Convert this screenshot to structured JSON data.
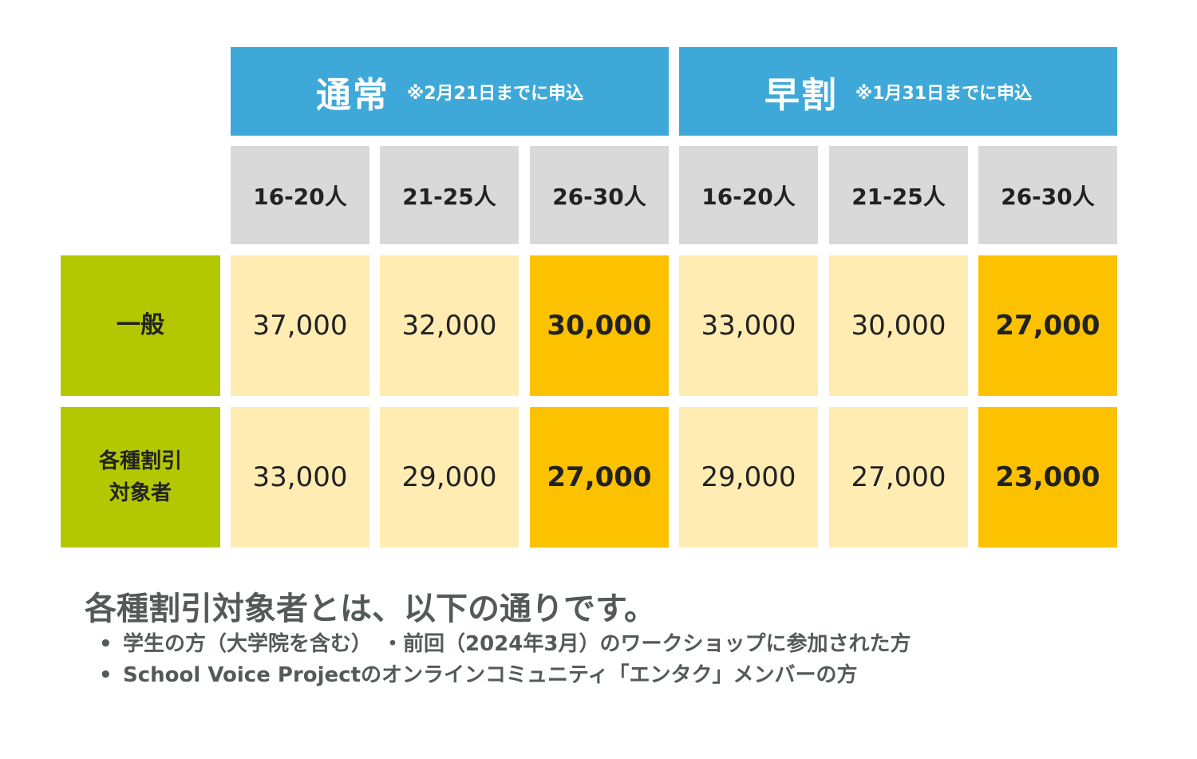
{
  "headers": [
    {
      "title": "通常",
      "note": "※2月21日までに申込"
    },
    {
      "title": "早割",
      "note": "※1月31日までに申込"
    }
  ],
  "group_sizes": [
    "16-20人",
    "21-25人",
    "26-30人",
    "16-20人",
    "21-25人",
    "26-30人"
  ],
  "rows": [
    {
      "label_lines": [
        "一般"
      ],
      "values": [
        "37,000",
        "32,000",
        "30,000",
        "33,000",
        "30,000",
        "27,000"
      ]
    },
    {
      "label_lines": [
        "各種割引",
        "対象者"
      ],
      "values": [
        "33,000",
        "29,000",
        "27,000",
        "29,000",
        "27,000",
        "23,000"
      ]
    }
  ],
  "note": {
    "title": "各種割引対象者とは、以下の通りです。",
    "bullets": [
      "学生の方（大学院を含む）　・前回（2024年3月）のワークショップに参加された方",
      "School Voice Projectのオンラインコミュニティ「エンタク」メンバーの方"
    ],
    "bullet_symbol": "•"
  },
  "colors": {
    "header_blue": "#3ea9d8",
    "subheader_gray": "#d9d9d9",
    "row_label_green": "#b3c800",
    "cell_light": "#ffecb3",
    "cell_highlight": "#fcc200",
    "note_text": "#535a58"
  }
}
